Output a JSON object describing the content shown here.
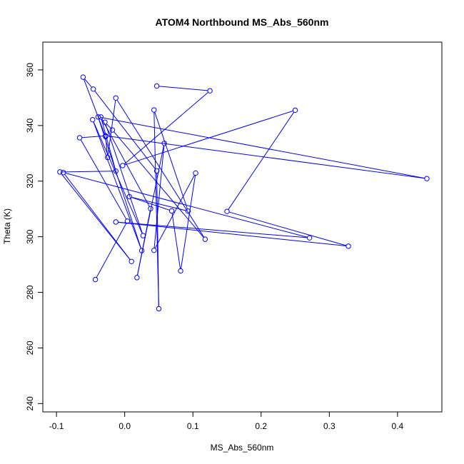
{
  "chart_data": {
    "type": "scatter",
    "title": "ATOM4 Northbound MS_Abs_560nm",
    "xlabel": "MS_Abs_560nm",
    "ylabel": "Theta (K)",
    "xlim": [
      -0.12,
      0.465
    ],
    "ylim": [
      237,
      370
    ],
    "xticks": [
      -0.1,
      0.0,
      0.1,
      0.2,
      0.3,
      0.4
    ],
    "xtick_labels": [
      "-0.1",
      "0.0",
      "0.1",
      "0.2",
      "0.3",
      "0.4"
    ],
    "yticks": [
      240,
      260,
      280,
      300,
      320,
      340,
      360
    ],
    "ytick_labels": [
      "240",
      "260",
      "280",
      "300",
      "320",
      "340",
      "360"
    ],
    "grid": false,
    "connected": true,
    "color": "#0000ff",
    "points": [
      {
        "x": 0.047,
        "y": 354.2
      },
      {
        "x": 0.125,
        "y": 352.5
      },
      {
        "x": -0.003,
        "y": 325.6
      },
      {
        "x": 0.25,
        "y": 345.5
      },
      {
        "x": 0.15,
        "y": 309.1
      },
      {
        "x": 0.328,
        "y": 296.6
      },
      {
        "x": -0.013,
        "y": 305.3
      },
      {
        "x": 0.271,
        "y": 299.6
      },
      {
        "x": -0.09,
        "y": 323.1
      },
      {
        "x": 0.01,
        "y": 291.1
      },
      {
        "x": -0.095,
        "y": 323.3
      },
      {
        "x": -0.013,
        "y": 323.6
      },
      {
        "x": -0.035,
        "y": 343.1
      },
      {
        "x": 0.038,
        "y": 310.1
      },
      {
        "x": 0.018,
        "y": 285.3
      },
      {
        "x": 0.058,
        "y": 333.6
      },
      {
        "x": 0.043,
        "y": 295.1
      },
      {
        "x": 0.104,
        "y": 322.9
      },
      {
        "x": 0.082,
        "y": 287.7
      },
      {
        "x": 0.069,
        "y": 309.3
      },
      {
        "x": 0.007,
        "y": 314.4
      },
      {
        "x": 0.093,
        "y": 309.2
      },
      {
        "x": 0.043,
        "y": 345.6
      },
      {
        "x": 0.05,
        "y": 274.1
      },
      {
        "x": 0.047,
        "y": 323.7
      },
      {
        "x": -0.046,
        "y": 353.1
      },
      {
        "x": -0.061,
        "y": 357.4
      },
      {
        "x": -0.028,
        "y": 336.0
      },
      {
        "x": -0.025,
        "y": 328.5
      },
      {
        "x": -0.013,
        "y": 349.9
      },
      {
        "x": 0.118,
        "y": 299.1
      },
      {
        "x": -0.018,
        "y": 338.4
      },
      {
        "x": -0.029,
        "y": 341.2
      },
      {
        "x": 0.027,
        "y": 300.4
      },
      {
        "x": -0.047,
        "y": 342.1
      },
      {
        "x": 0.025,
        "y": 295.0
      },
      {
        "x": -0.039,
        "y": 343.1
      },
      {
        "x": 0.443,
        "y": 320.9
      },
      {
        "x": -0.028,
        "y": 336.3
      },
      {
        "x": -0.066,
        "y": 335.6
      },
      {
        "x": 0.004,
        "y": 305.6
      },
      {
        "x": -0.043,
        "y": 284.6
      }
    ]
  }
}
